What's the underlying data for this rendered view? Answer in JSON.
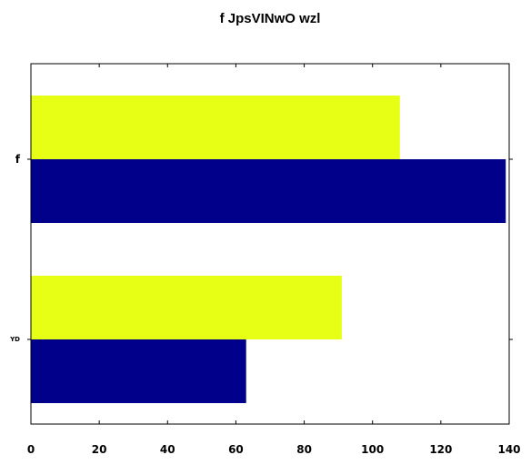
{
  "chart_data": {
    "type": "bar",
    "orientation": "horizontal",
    "title": "f JpsVINwO wzl",
    "xlabel": "",
    "ylabel": "",
    "categories": [
      "f",
      "YD"
    ],
    "xlim": [
      0,
      140
    ],
    "xticks": [
      0,
      20,
      40,
      60,
      80,
      100,
      120,
      140
    ],
    "grid": false,
    "series": [
      {
        "values": [
          108,
          91
        ],
        "color": "#e6ff14"
      },
      {
        "values": [
          139,
          63
        ],
        "color": "#00008b"
      }
    ]
  }
}
